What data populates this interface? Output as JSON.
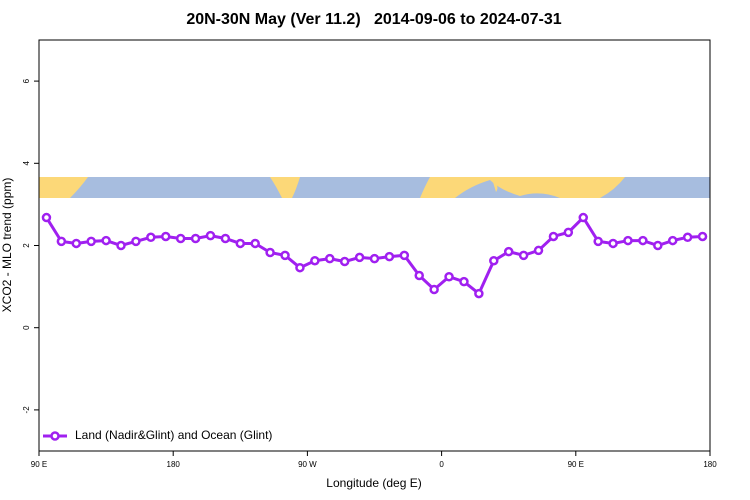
{
  "chart_data": {
    "type": "line",
    "title": "20N-30N May (Ver 11.2)   2014-09-06 to 2024-07-31",
    "x_label": "Longitude (deg E)",
    "y_label": "XCO2 - MLO trend (ppm)",
    "x": [
      95,
      105,
      115,
      125,
      135,
      145,
      155,
      165,
      175,
      185,
      195,
      205,
      215,
      225,
      235,
      245,
      255,
      265,
      275,
      285,
      295,
      305,
      315,
      325,
      335,
      345,
      355,
      365,
      375,
      385,
      395,
      405,
      415,
      425,
      435,
      445,
      455,
      465,
      475,
      485,
      495,
      505,
      515,
      525,
      535
    ],
    "series": [
      {
        "name": "Land (Nadir&Glint) and Ocean (Glint)",
        "color": "#a020f0",
        "values": [
          2.68,
          2.1,
          2.05,
          2.1,
          2.12,
          2.0,
          2.1,
          2.2,
          2.22,
          2.17,
          2.17,
          2.24,
          2.17,
          2.05,
          2.05,
          1.83,
          1.76,
          1.46,
          1.63,
          1.68,
          1.61,
          1.71,
          1.68,
          1.73,
          1.76,
          1.27,
          0.93,
          1.24,
          1.12,
          0.83,
          1.63,
          1.85,
          1.76,
          1.88,
          2.22,
          2.32,
          2.68,
          2.1,
          2.05,
          2.12,
          2.12,
          2.0,
          2.12,
          2.2,
          2.22
        ]
      }
    ],
    "xlim": [
      90,
      540
    ],
    "xticks": [
      {
        "value": 90,
        "label": "90 E"
      },
      180,
      {
        "value": 270,
        "label": "90 W"
      },
      {
        "value": 360,
        "label": "0"
      },
      {
        "value": 450,
        "label": "90 E"
      },
      {
        "value": 540,
        "label": "180"
      }
    ],
    "ylim": [
      -3,
      7
    ],
    "yticks": [
      -2,
      0,
      2,
      4,
      6
    ],
    "legend": "bottom-left"
  }
}
